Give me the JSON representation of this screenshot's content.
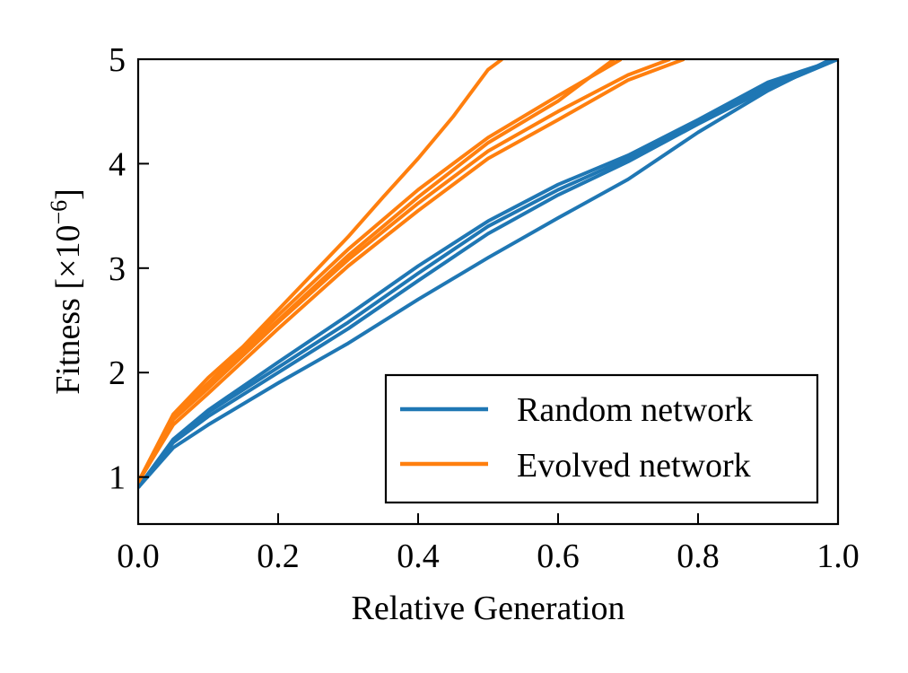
{
  "chart_data": {
    "type": "line",
    "title": "",
    "xlabel": "Relative Generation",
    "ylabel": "Fitness [×10",
    "ylabel_exponent": "−6",
    "ylabel_suffix": "]",
    "xlim": [
      0.0,
      1.0
    ],
    "ylim": [
      0.55,
      5.0
    ],
    "xticks": [
      0.0,
      0.2,
      0.4,
      0.6,
      0.8,
      1.0
    ],
    "xtick_labels": [
      "0.0",
      "0.2",
      "0.4",
      "0.6",
      "0.8",
      "1.0"
    ],
    "yticks": [
      1,
      2,
      3,
      4,
      5
    ],
    "ytick_labels": [
      "1",
      "2",
      "3",
      "4",
      "5"
    ],
    "legend": {
      "placement": "lower-right",
      "entries": [
        "Random network",
        "Evolved network"
      ]
    },
    "colors": {
      "Random network": "#1f77b4",
      "Evolved network": "#ff7f0e"
    },
    "series": [
      {
        "name": "Random network",
        "x": [
          0,
          0.05,
          0.1,
          0.2,
          0.3,
          0.4,
          0.5,
          0.6,
          0.7,
          0.8,
          0.9,
          1.0
        ],
        "y": [
          0.9,
          1.35,
          1.62,
          2.05,
          2.48,
          2.95,
          3.4,
          3.75,
          4.05,
          4.4,
          4.75,
          5.0
        ]
      },
      {
        "name": "Random network",
        "x": [
          0,
          0.05,
          0.1,
          0.2,
          0.3,
          0.4,
          0.5,
          0.6,
          0.7,
          0.8,
          0.9,
          1.0
        ],
        "y": [
          0.9,
          1.33,
          1.58,
          2.0,
          2.42,
          2.88,
          3.33,
          3.7,
          4.02,
          4.38,
          4.72,
          5.0
        ]
      },
      {
        "name": "Random network",
        "x": [
          0,
          0.05,
          0.1,
          0.2,
          0.3,
          0.4,
          0.5,
          0.6,
          0.7,
          0.8,
          0.9,
          1.0
        ],
        "y": [
          0.9,
          1.36,
          1.64,
          2.1,
          2.55,
          3.02,
          3.45,
          3.8,
          4.08,
          4.42,
          4.78,
          5.0
        ]
      },
      {
        "name": "Random network",
        "x": [
          0,
          0.05,
          0.1,
          0.2,
          0.3,
          0.4,
          0.5,
          0.6,
          0.7,
          0.8,
          0.9,
          0.99
        ],
        "y": [
          0.9,
          1.28,
          1.5,
          1.9,
          2.28,
          2.7,
          3.1,
          3.48,
          3.85,
          4.3,
          4.7,
          5.0
        ]
      },
      {
        "name": "Evolved network",
        "x": [
          0,
          0.05,
          0.1,
          0.15,
          0.2,
          0.25,
          0.3,
          0.35,
          0.4,
          0.45,
          0.5,
          0.52
        ],
        "y": [
          0.95,
          1.6,
          1.95,
          2.25,
          2.6,
          2.95,
          3.3,
          3.68,
          4.05,
          4.45,
          4.9,
          5.0
        ]
      },
      {
        "name": "Evolved network",
        "x": [
          0,
          0.05,
          0.1,
          0.2,
          0.3,
          0.4,
          0.5,
          0.6,
          0.7,
          0.76
        ],
        "y": [
          0.95,
          1.55,
          1.85,
          2.48,
          3.08,
          3.62,
          4.12,
          4.5,
          4.85,
          5.0
        ]
      },
      {
        "name": "Evolved network",
        "x": [
          0,
          0.05,
          0.1,
          0.2,
          0.3,
          0.4,
          0.5,
          0.6,
          0.69
        ],
        "y": [
          0.95,
          1.58,
          1.9,
          2.55,
          3.18,
          3.75,
          4.25,
          4.65,
          5.0
        ]
      },
      {
        "name": "Evolved network",
        "x": [
          0,
          0.05,
          0.1,
          0.2,
          0.3,
          0.4,
          0.5,
          0.6,
          0.7,
          0.78
        ],
        "y": [
          0.95,
          1.5,
          1.8,
          2.42,
          3.02,
          3.55,
          4.05,
          4.42,
          4.8,
          5.0
        ]
      },
      {
        "name": "Evolved network",
        "x": [
          0,
          0.05,
          0.1,
          0.2,
          0.3,
          0.4,
          0.5,
          0.6,
          0.68
        ],
        "y": [
          0.95,
          1.57,
          1.88,
          2.5,
          3.12,
          3.68,
          4.2,
          4.6,
          5.0
        ]
      }
    ]
  }
}
